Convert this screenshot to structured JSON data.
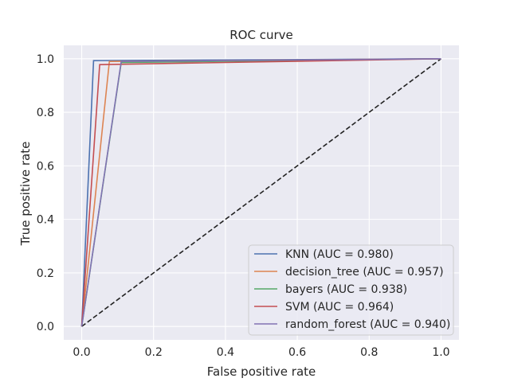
{
  "chart_data": {
    "type": "line",
    "title": "ROC curve",
    "xlabel": "False positive rate",
    "ylabel": "True positive rate",
    "xlim": [
      -0.05,
      1.05
    ],
    "ylim": [
      -0.05,
      1.05
    ],
    "xticks": [
      0.0,
      0.2,
      0.4,
      0.6,
      0.8,
      1.0
    ],
    "yticks": [
      0.0,
      0.2,
      0.4,
      0.6,
      0.8,
      1.0
    ],
    "tick_labels": [
      "0.0",
      "0.2",
      "0.4",
      "0.6",
      "0.8",
      "1.0"
    ],
    "grid": true,
    "legend_position": "lower-right",
    "background": "#eaeaf2",
    "series": [
      {
        "name": "KNN (AUC = 0.980)",
        "color": "#4c72b0",
        "x": [
          0.0,
          0.033,
          1.0
        ],
        "y": [
          0.0,
          0.993,
          1.0
        ]
      },
      {
        "name": "decision_tree (AUC = 0.957)",
        "color": "#dd8452",
        "x": [
          0.0,
          0.077,
          1.0
        ],
        "y": [
          0.0,
          0.99,
          1.0
        ]
      },
      {
        "name": "bayers (AUC = 0.938)",
        "color": "#55a868",
        "x": [
          0.0,
          0.11,
          1.0
        ],
        "y": [
          0.0,
          0.986,
          1.0
        ]
      },
      {
        "name": "SVM (AUC = 0.964)",
        "color": "#c44e52",
        "x": [
          0.0,
          0.05,
          1.0
        ],
        "y": [
          0.0,
          0.978,
          1.0
        ]
      },
      {
        "name": "random_forest (AUC = 0.940)",
        "color": "#8172b3",
        "x": [
          0.0,
          0.11,
          1.0
        ],
        "y": [
          0.0,
          0.99,
          1.0
        ]
      }
    ],
    "reference_line": {
      "x": [
        0.0,
        1.0
      ],
      "y": [
        0.0,
        1.0
      ],
      "color": "#222222",
      "style": "dashed"
    }
  }
}
